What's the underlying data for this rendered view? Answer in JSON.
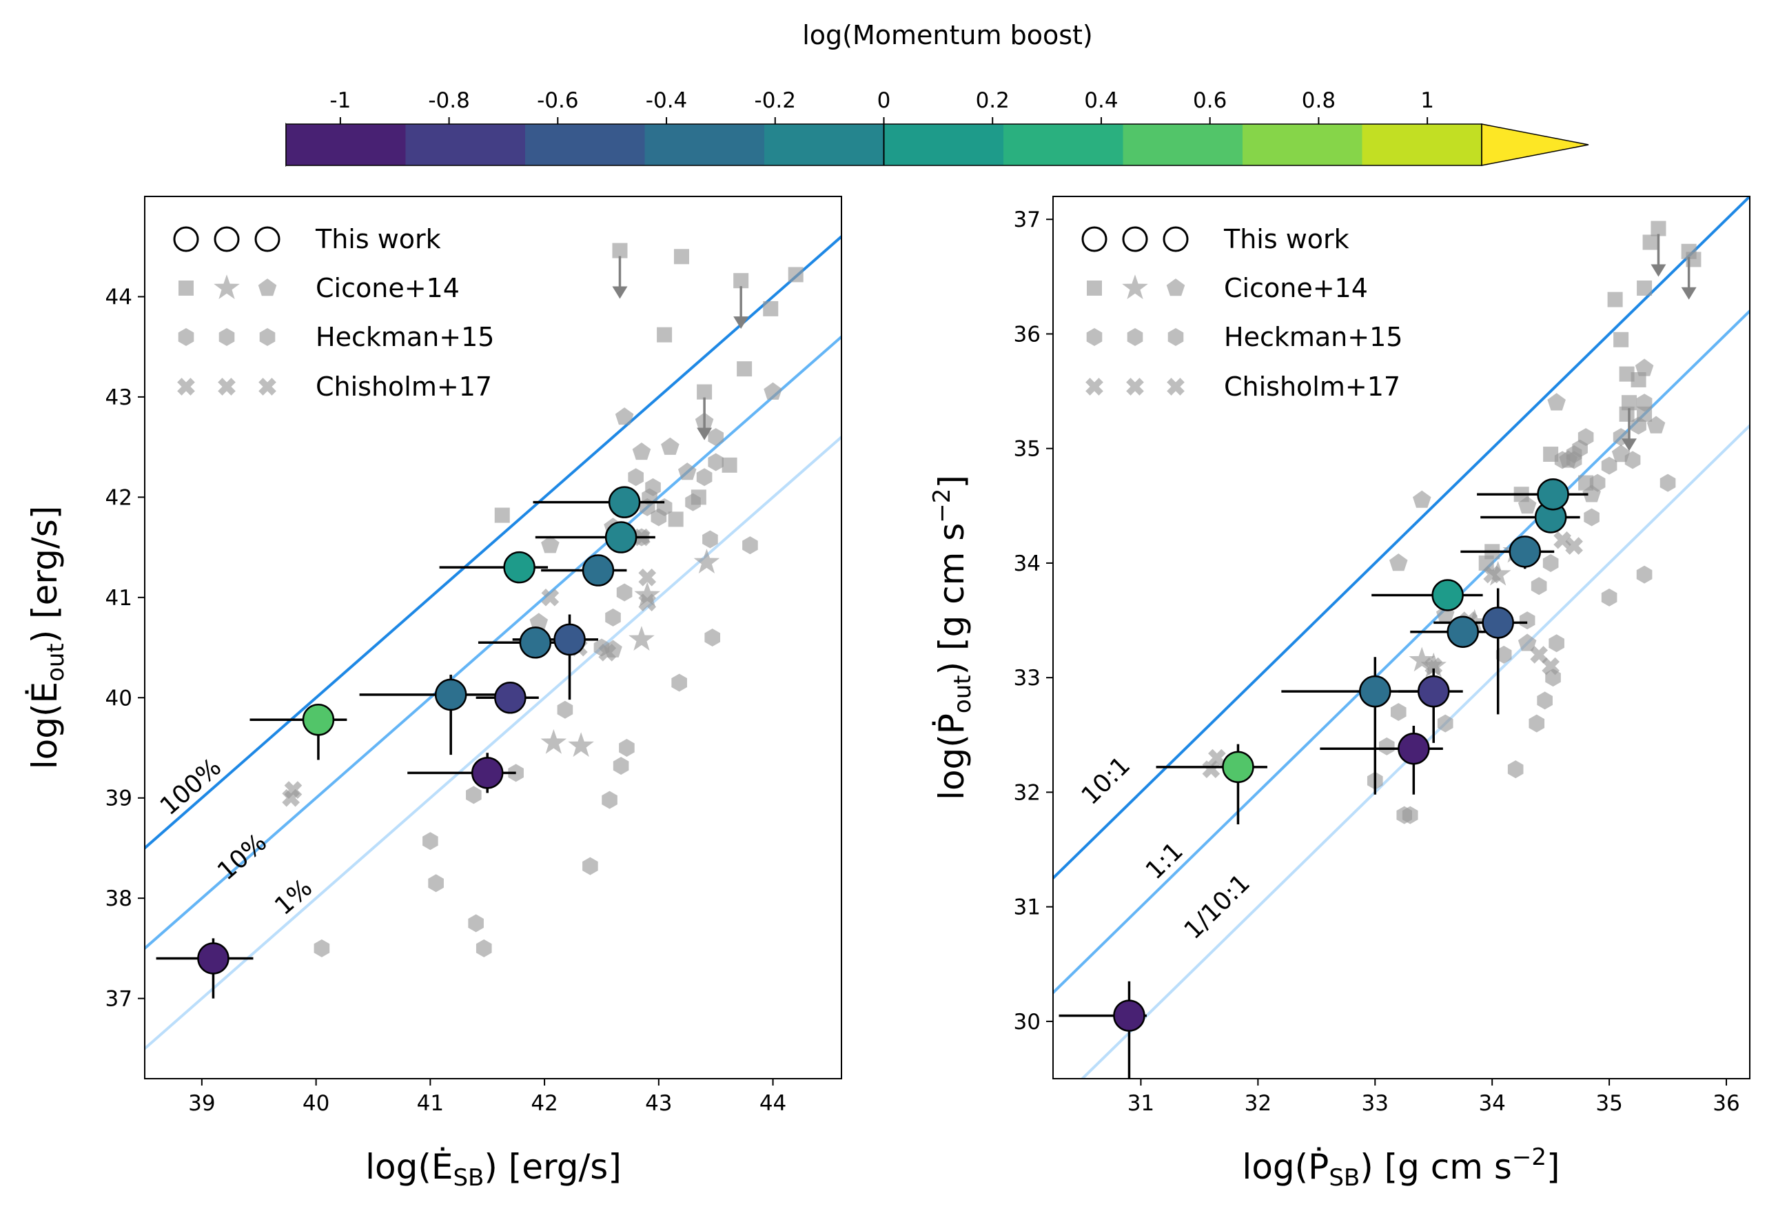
{
  "colorbar": {
    "label": "log(Momentum boost)",
    "ticks": [
      -1,
      -0.8,
      -0.6,
      -0.4,
      -0.2,
      0,
      0.2,
      0.4,
      0.6,
      0.8,
      1
    ],
    "tick_labels": [
      "-1",
      "-0.8",
      "-0.6",
      "-0.4",
      "-0.2",
      "0",
      "0.2",
      "0.4",
      "0.6",
      "0.8",
      "1"
    ],
    "colors": [
      "#440154",
      "#482173",
      "#433e85",
      "#38598c",
      "#2d708e",
      "#25858e",
      "#1e9b8a",
      "#2ab07f",
      "#52c569",
      "#86d549",
      "#c2df23",
      "#fde725"
    ],
    "range": [
      -1.1,
      1.1
    ],
    "extend": "both"
  },
  "legend": {
    "entries": [
      "This work",
      "Cicone+14",
      "Heckman+15",
      "Chisholm+17"
    ],
    "placement": "upper-left"
  },
  "chart_data": [
    {
      "type": "scatter",
      "panel": "left",
      "xlabel": "log(Ė_SB) [erg/s]",
      "ylabel": "log(Ė_out) [erg/s]",
      "xlim": [
        38.5,
        44.6
      ],
      "ylim": [
        36.2,
        45.0
      ],
      "xticks": [
        39,
        40,
        41,
        42,
        43,
        44
      ],
      "yticks": [
        37,
        38,
        39,
        40,
        41,
        42,
        43,
        44
      ],
      "reference_lines": [
        {
          "label": "100%",
          "offset": 0,
          "color": "#1e88e5"
        },
        {
          "label": "10%",
          "offset": -1,
          "color": "#64b5f6"
        },
        {
          "label": "1%",
          "offset": -2,
          "color": "#bbdefb"
        }
      ],
      "this_work": [
        {
          "x": 39.1,
          "y": 37.4,
          "xerr": [
            0.5,
            0.35
          ],
          "yerr": [
            0.4,
            0.2
          ],
          "boost": -1.0
        },
        {
          "x": 40.02,
          "y": 39.78,
          "xerr": [
            0.6,
            0.25
          ],
          "yerr": [
            0.4,
            0.15
          ],
          "boost": 0.5
        },
        {
          "x": 41.18,
          "y": 40.03,
          "xerr": [
            0.8,
            0.5
          ],
          "yerr": [
            0.6,
            0.2
          ],
          "boost": -0.3
        },
        {
          "x": 41.7,
          "y": 40.0,
          "xerr": [
            0.3,
            0.25
          ],
          "yerr": [
            0.15,
            0.15
          ],
          "boost": -0.75
        },
        {
          "x": 41.5,
          "y": 39.25,
          "xerr": [
            0.7,
            0.25
          ],
          "yerr": [
            0.2,
            0.2
          ],
          "boost": -1.0
        },
        {
          "x": 41.92,
          "y": 40.55,
          "xerr": [
            0.5,
            0.25
          ],
          "yerr": [
            0.1,
            0.1
          ],
          "boost": -0.4
        },
        {
          "x": 42.22,
          "y": 40.58,
          "xerr": [
            0.5,
            0.25
          ],
          "yerr": [
            0.6,
            0.25
          ],
          "boost": -0.55
        },
        {
          "x": 41.78,
          "y": 41.3,
          "xerr": [
            0.7,
            0.25
          ],
          "yerr": [
            0.15,
            0.1
          ],
          "boost": 0.05
        },
        {
          "x": 42.47,
          "y": 41.27,
          "xerr": [
            0.5,
            0.25
          ],
          "yerr": [
            0.1,
            0.1
          ],
          "boost": -0.25
        },
        {
          "x": 42.67,
          "y": 41.6,
          "xerr": [
            0.75,
            0.3
          ],
          "yerr": [
            0.1,
            0.1
          ],
          "boost": -0.2
        },
        {
          "x": 42.7,
          "y": 41.95,
          "xerr": [
            0.8,
            0.35
          ],
          "yerr": [
            0.1,
            0.1
          ],
          "boost": -0.05
        }
      ],
      "cicone14_squares": [
        [
          43.2,
          44.4
        ],
        [
          43.05,
          43.62
        ],
        [
          43.75,
          43.28
        ],
        [
          43.98,
          43.88
        ],
        [
          44.2,
          44.22
        ],
        [
          41.63,
          41.82
        ],
        [
          43.15,
          41.78
        ],
        [
          43.62,
          42.32
        ],
        [
          43.35,
          42.0
        ]
      ],
      "cicone14_upper_limits": [
        [
          42.66,
          44.46
        ],
        [
          43.72,
          44.16
        ],
        [
          43.4,
          43.05
        ]
      ],
      "cicone14_stars": [
        [
          42.08,
          39.55
        ],
        [
          42.32,
          39.52
        ],
        [
          42.85,
          40.58
        ],
        [
          42.9,
          41.02
        ],
        [
          43.42,
          41.35
        ]
      ],
      "cicone14_pentagons": [
        [
          42.05,
          41.52
        ],
        [
          42.5,
          41.3
        ],
        [
          42.6,
          41.7
        ],
        [
          42.7,
          42.8
        ],
        [
          42.85,
          42.45
        ],
        [
          43.1,
          42.5
        ],
        [
          43.4,
          42.75
        ],
        [
          44.0,
          43.05
        ],
        [
          41.95,
          40.75
        ],
        [
          42.6,
          40.48
        ],
        [
          43.25,
          42.25
        ]
      ],
      "heckman15": [
        [
          40.05,
          37.5
        ],
        [
          41.0,
          38.57
        ],
        [
          41.05,
          38.15
        ],
        [
          41.4,
          37.75
        ],
        [
          41.47,
          37.5
        ],
        [
          41.38,
          39.03
        ],
        [
          41.75,
          39.25
        ],
        [
          42.4,
          38.32
        ],
        [
          42.57,
          38.98
        ],
        [
          42.67,
          39.32
        ],
        [
          42.72,
          39.5
        ],
        [
          42.18,
          39.88
        ],
        [
          42.5,
          40.5
        ],
        [
          42.6,
          40.8
        ],
        [
          42.7,
          41.05
        ],
        [
          43.18,
          40.15
        ],
        [
          43.47,
          40.6
        ],
        [
          42.85,
          41.6
        ],
        [
          42.9,
          41.9
        ],
        [
          42.95,
          42.1
        ],
        [
          43.05,
          41.9
        ],
        [
          43.3,
          41.95
        ],
        [
          43.4,
          42.2
        ],
        [
          43.45,
          41.58
        ],
        [
          43.5,
          42.35
        ],
        [
          43.5,
          42.6
        ],
        [
          43.8,
          41.52
        ],
        [
          42.8,
          42.2
        ],
        [
          42.92,
          42.0
        ],
        [
          43.0,
          41.8
        ]
      ],
      "chisholm17": [
        [
          39.78,
          39.0
        ],
        [
          39.8,
          39.08
        ],
        [
          41.9,
          40.6
        ],
        [
          42.05,
          41.0
        ],
        [
          42.3,
          40.5
        ],
        [
          42.55,
          40.45
        ],
        [
          42.85,
          41.6
        ],
        [
          42.9,
          41.2
        ],
        [
          42.9,
          40.95
        ]
      ]
    },
    {
      "type": "scatter",
      "panel": "right",
      "xlabel": "log(Ṗ_SB) [g cm s^-2]",
      "ylabel": "log(Ṗ_out) [g cm s^-2]",
      "xlim": [
        30.25,
        36.2
      ],
      "ylim": [
        29.5,
        37.2
      ],
      "xticks": [
        31,
        32,
        33,
        34,
        35,
        36
      ],
      "yticks": [
        30,
        31,
        32,
        33,
        34,
        35,
        36,
        37
      ],
      "reference_lines": [
        {
          "label": "10:1",
          "offset": 1,
          "color": "#1e88e5"
        },
        {
          "label": "1:1",
          "offset": 0,
          "color": "#64b5f6"
        },
        {
          "label": "1/10:1",
          "offset": -1,
          "color": "#bbdefb"
        }
      ],
      "this_work": [
        {
          "x": 30.9,
          "y": 30.05,
          "xerr": [
            0.6,
            0.15
          ],
          "yerr": [
            0.6,
            0.3
          ],
          "boost": -1.0
        },
        {
          "x": 31.83,
          "y": 32.22,
          "xerr": [
            0.7,
            0.25
          ],
          "yerr": [
            0.5,
            0.2
          ],
          "boost": 0.5
        },
        {
          "x": 33.0,
          "y": 32.88,
          "xerr": [
            0.8,
            0.5
          ],
          "yerr": [
            0.9,
            0.3
          ],
          "boost": -0.3
        },
        {
          "x": 33.33,
          "y": 32.38,
          "xerr": [
            0.8,
            0.25
          ],
          "yerr": [
            0.4,
            0.2
          ],
          "boost": -1.0
        },
        {
          "x": 33.5,
          "y": 32.88,
          "xerr": [
            0.3,
            0.25
          ],
          "yerr": [
            0.45,
            0.2
          ],
          "boost": -0.75
        },
        {
          "x": 33.62,
          "y": 33.72,
          "xerr": [
            0.65,
            0.3
          ],
          "yerr": [
            0.1,
            0.1
          ],
          "boost": 0.05
        },
        {
          "x": 33.75,
          "y": 33.4,
          "xerr": [
            0.45,
            0.25
          ],
          "yerr": [
            0.1,
            0.1
          ],
          "boost": -0.4
        },
        {
          "x": 34.05,
          "y": 33.48,
          "xerr": [
            0.55,
            0.25
          ],
          "yerr": [
            0.8,
            0.3
          ],
          "boost": -0.55
        },
        {
          "x": 34.28,
          "y": 34.1,
          "xerr": [
            0.55,
            0.25
          ],
          "yerr": [
            0.15,
            0.1
          ],
          "boost": -0.25
        },
        {
          "x": 34.5,
          "y": 34.4,
          "xerr": [
            0.6,
            0.25
          ],
          "yerr": [
            0.1,
            0.1
          ],
          "boost": -0.2
        },
        {
          "x": 34.52,
          "y": 34.6,
          "xerr": [
            0.65,
            0.3
          ],
          "yerr": [
            0.1,
            0.1
          ],
          "boost": -0.05
        }
      ],
      "cicone14_squares": [
        [
          35.05,
          36.3
        ],
        [
          35.1,
          35.95
        ],
        [
          35.15,
          35.65
        ],
        [
          35.25,
          35.6
        ],
        [
          35.35,
          36.8
        ],
        [
          35.3,
          35.3
        ],
        [
          34.8,
          34.7
        ],
        [
          34.5,
          34.95
        ],
        [
          34.25,
          34.6
        ],
        [
          34.0,
          34.1
        ],
        [
          33.95,
          34.0
        ],
        [
          35.15,
          35.3
        ],
        [
          35.3,
          36.4
        ],
        [
          35.72,
          36.65
        ]
      ],
      "cicone14_upper_limits": [
        [
          35.42,
          36.92
        ],
        [
          35.68,
          36.72
        ],
        [
          35.17,
          35.4
        ]
      ],
      "cicone14_stars": [
        [
          33.4,
          33.15
        ],
        [
          33.5,
          33.1
        ],
        [
          33.85,
          33.48
        ],
        [
          34.05,
          33.9
        ],
        [
          34.2,
          34.1
        ]
      ],
      "cicone14_pentagons": [
        [
          33.2,
          34.0
        ],
        [
          33.4,
          34.55
        ],
        [
          34.3,
          34.5
        ],
        [
          34.65,
          34.9
        ],
        [
          34.85,
          34.6
        ],
        [
          35.1,
          34.95
        ],
        [
          35.3,
          35.7
        ],
        [
          35.4,
          35.2
        ],
        [
          33.6,
          33.55
        ],
        [
          34.3,
          33.3
        ],
        [
          34.55,
          35.4
        ]
      ],
      "heckman15": [
        [
          33.1,
          32.4
        ],
        [
          33.0,
          32.1
        ],
        [
          33.25,
          31.8
        ],
        [
          33.3,
          31.8
        ],
        [
          33.2,
          32.7
        ],
        [
          33.6,
          32.6
        ],
        [
          34.2,
          32.2
        ],
        [
          34.38,
          32.6
        ],
        [
          34.45,
          32.8
        ],
        [
          34.52,
          33.0
        ],
        [
          34.55,
          33.3
        ],
        [
          34.1,
          33.2
        ],
        [
          34.3,
          33.5
        ],
        [
          34.4,
          33.8
        ],
        [
          34.5,
          34.0
        ],
        [
          35.0,
          33.7
        ],
        [
          35.3,
          33.9
        ],
        [
          34.7,
          34.9
        ],
        [
          34.75,
          35.0
        ],
        [
          34.8,
          35.1
        ],
        [
          34.9,
          34.7
        ],
        [
          35.0,
          34.85
        ],
        [
          35.2,
          34.9
        ],
        [
          35.25,
          35.2
        ],
        [
          35.3,
          35.4
        ],
        [
          35.5,
          34.7
        ],
        [
          34.6,
          34.9
        ],
        [
          34.7,
          34.95
        ],
        [
          35.1,
          35.1
        ],
        [
          34.85,
          34.4
        ]
      ],
      "chisholm17": [
        [
          31.6,
          32.2
        ],
        [
          31.65,
          32.3
        ],
        [
          33.5,
          33.1
        ],
        [
          33.8,
          33.5
        ],
        [
          34.0,
          33.9
        ],
        [
          34.4,
          33.2
        ],
        [
          34.5,
          33.1
        ],
        [
          34.6,
          34.2
        ],
        [
          34.7,
          34.15
        ]
      ]
    }
  ]
}
